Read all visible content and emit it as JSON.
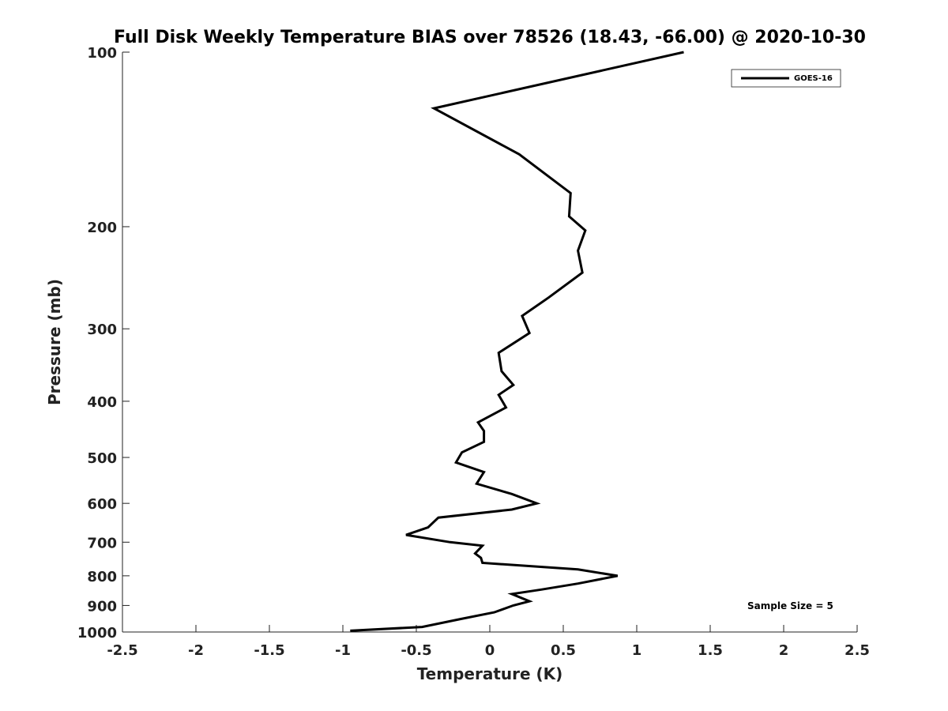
{
  "chart_data": {
    "type": "line",
    "title": "Full Disk Weekly Temperature BIAS over 78526 (18.43, -66.00) @ 2020-10-30",
    "xlabel": "Temperature (K)",
    "ylabel": "Pressure (mb)",
    "xlim": [
      -2.5,
      2.5
    ],
    "ylim": [
      100,
      1000
    ],
    "y_scale": "log",
    "y_reversed": true,
    "x_ticks": [
      "-2.5",
      "-2",
      "-1.5",
      "-1",
      "-0.5",
      "0",
      "0.5",
      "1",
      "1.5",
      "2",
      "2.5"
    ],
    "y_ticks": [
      "100",
      "200",
      "300",
      "400",
      "500",
      "600",
      "700",
      "800",
      "900",
      "1000"
    ],
    "grid": false,
    "legend_position": "top-right",
    "annotation": "Sample Size = 5",
    "series": [
      {
        "name": "GOES-16",
        "color": "#000000",
        "points": [
          [
            1.32,
            100
          ],
          [
            -0.38,
            125
          ],
          [
            0.2,
            150
          ],
          [
            0.55,
            175
          ],
          [
            0.54,
            192
          ],
          [
            0.65,
            203
          ],
          [
            0.6,
            220
          ],
          [
            0.63,
            240
          ],
          [
            0.4,
            265
          ],
          [
            0.22,
            285
          ],
          [
            0.27,
            305
          ],
          [
            0.06,
            330
          ],
          [
            0.08,
            355
          ],
          [
            0.16,
            375
          ],
          [
            0.06,
            390
          ],
          [
            0.11,
            410
          ],
          [
            -0.08,
            435
          ],
          [
            -0.04,
            450
          ],
          [
            -0.04,
            470
          ],
          [
            -0.19,
            490
          ],
          [
            -0.23,
            510
          ],
          [
            -0.04,
            530
          ],
          [
            -0.09,
            555
          ],
          [
            0.15,
            578
          ],
          [
            0.32,
            600
          ],
          [
            0.15,
            615
          ],
          [
            -0.35,
            635
          ],
          [
            -0.42,
            660
          ],
          [
            -0.57,
            680
          ],
          [
            -0.27,
            700
          ],
          [
            -0.05,
            710
          ],
          [
            -0.1,
            732
          ],
          [
            -0.06,
            745
          ],
          [
            -0.05,
            760
          ],
          [
            0.6,
            780
          ],
          [
            0.87,
            800
          ],
          [
            0.6,
            825
          ],
          [
            0.35,
            845
          ],
          [
            0.15,
            860
          ],
          [
            0.27,
            885
          ],
          [
            0.16,
            900
          ],
          [
            0.03,
            925
          ],
          [
            -0.2,
            950
          ],
          [
            -0.46,
            980
          ],
          [
            -0.95,
            995
          ]
        ]
      }
    ]
  }
}
